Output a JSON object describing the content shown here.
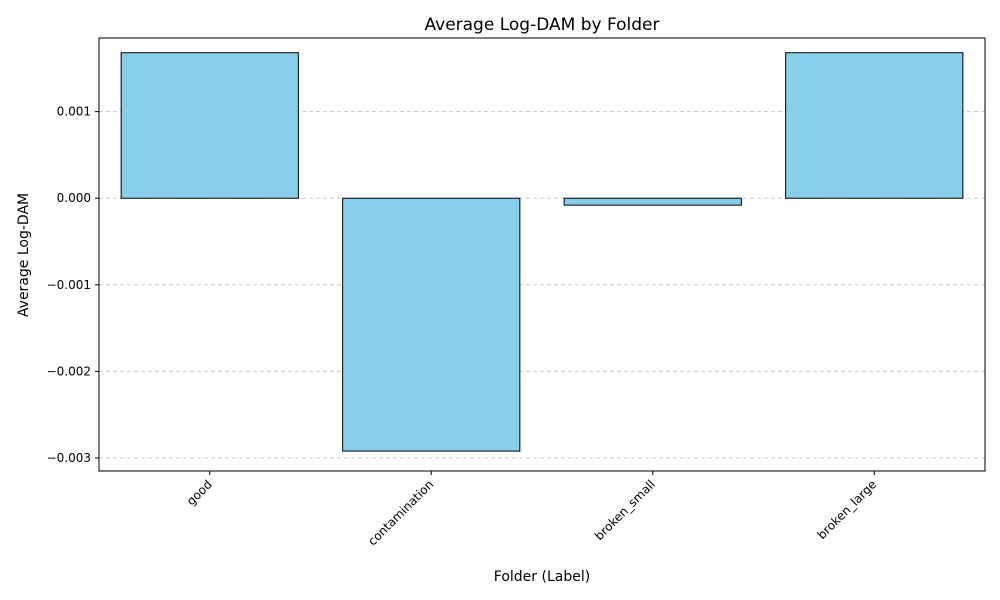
{
  "chart_data": {
    "type": "bar",
    "title": "Average Log-DAM by Folder",
    "xlabel": "Folder (Label)",
    "ylabel": "Average Log-DAM",
    "categories": [
      "good",
      "contamination",
      "broken_small",
      "broken_large"
    ],
    "values": [
      0.00168,
      -0.00292,
      -8e-05,
      0.00168
    ],
    "ylim": [
      -0.00315,
      0.00185
    ],
    "yticks": [
      0.001,
      0.0,
      -0.001,
      -0.002,
      -0.003
    ],
    "ytick_labels": [
      "0.001",
      "0.000",
      "−0.001",
      "−0.002",
      "−0.003"
    ],
    "grid": "y",
    "grid_style": "dashed",
    "legend": "none",
    "x_tick_rotation": "45 degrees",
    "colors": {
      "bar_fill": "#87ceeb",
      "bar_edge": "#000000",
      "grid": "#c8c8c8"
    }
  }
}
